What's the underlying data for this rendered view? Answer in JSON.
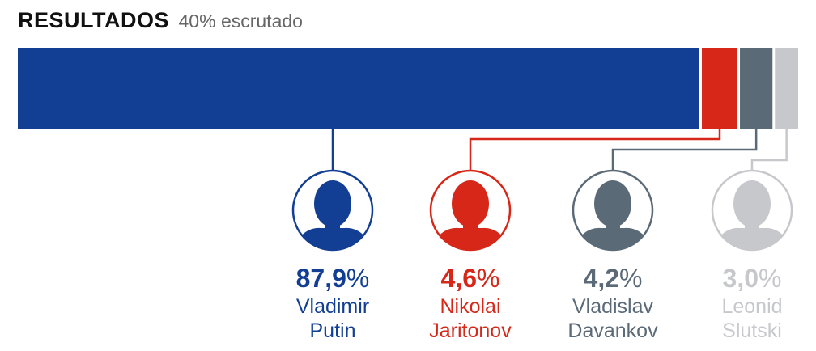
{
  "header": {
    "title": "RESULTADOS",
    "subtitle": "40% escrutado"
  },
  "chart_data": {
    "type": "bar",
    "orientation": "stacked-horizontal",
    "title": "RESULTADOS",
    "subtitle": "40% escrutado",
    "unit": "%",
    "grid": false,
    "series": [
      {
        "first": "Vladimir",
        "last": "Putin",
        "value": 87.9,
        "num": "87,9",
        "color": "#123f93",
        "icon": "portrait-putin"
      },
      {
        "first": "Nikolai",
        "last": "Jaritonov",
        "value": 4.6,
        "num": "4,6",
        "color": "#d62718",
        "icon": "portrait-jaritonov"
      },
      {
        "first": "Vladislav",
        "last": "Davankov",
        "value": 4.2,
        "num": "4,2",
        "color": "#5b6a77",
        "icon": "portrait-davankov"
      },
      {
        "first": "Leonid",
        "last": "Slutski",
        "value": 3.0,
        "num": "3,0",
        "color": "#c7c8cc",
        "icon": "portrait-slutski"
      }
    ],
    "pct_symbol": "%"
  }
}
